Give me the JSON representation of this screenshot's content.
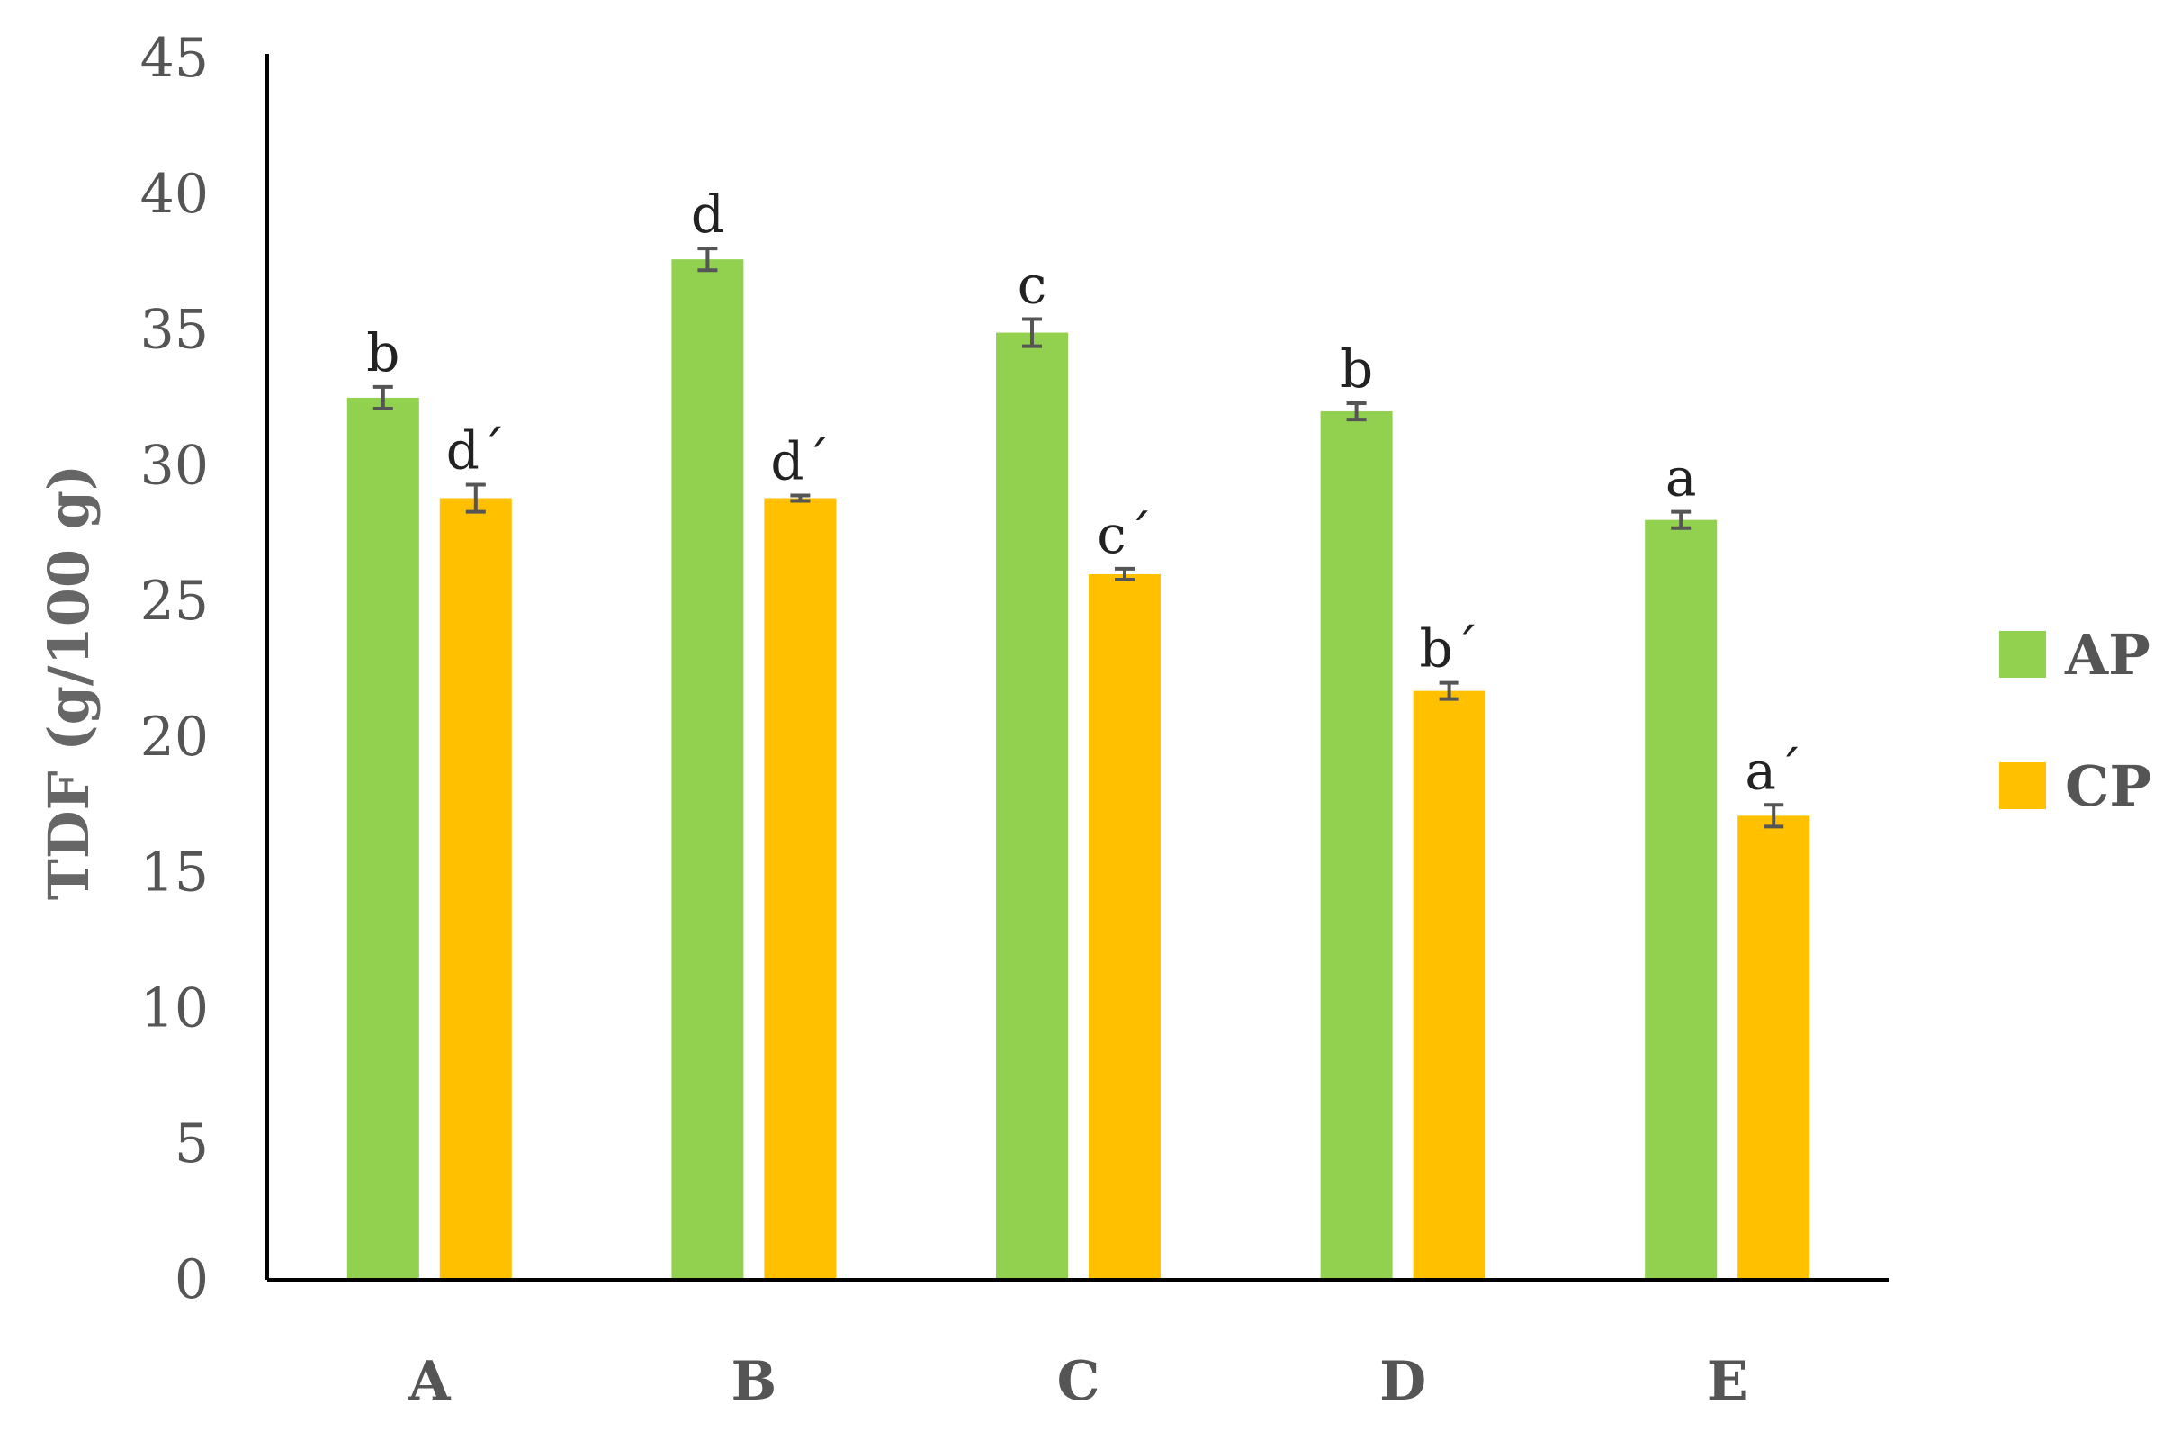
{
  "chart_data": {
    "type": "bar",
    "categories": [
      "A",
      "B",
      "C",
      "D",
      "E"
    ],
    "series": [
      {
        "name": "AP",
        "color": "#92D050",
        "values": [
          32.5,
          37.6,
          34.9,
          32.0,
          28.0
        ],
        "errors": [
          0.4,
          0.4,
          0.5,
          0.3,
          0.3
        ],
        "labels": [
          "b",
          "d",
          "c",
          "b",
          "a"
        ]
      },
      {
        "name": "CP",
        "color": "#FFC000",
        "values": [
          28.8,
          28.8,
          26.0,
          21.7,
          17.1
        ],
        "errors": [
          0.5,
          0.1,
          0.2,
          0.3,
          0.4
        ],
        "labels": [
          "d´",
          "d´",
          "c´",
          "b´",
          "a´"
        ]
      }
    ],
    "ylabel": "TDF (g/100 g)",
    "xlabel": "",
    "ylim": [
      0,
      45
    ],
    "yticks": [
      "0",
      "5",
      "10",
      "15",
      "20",
      "25",
      "30",
      "35",
      "40",
      "45"
    ],
    "grid": false,
    "legend_position": "right"
  }
}
